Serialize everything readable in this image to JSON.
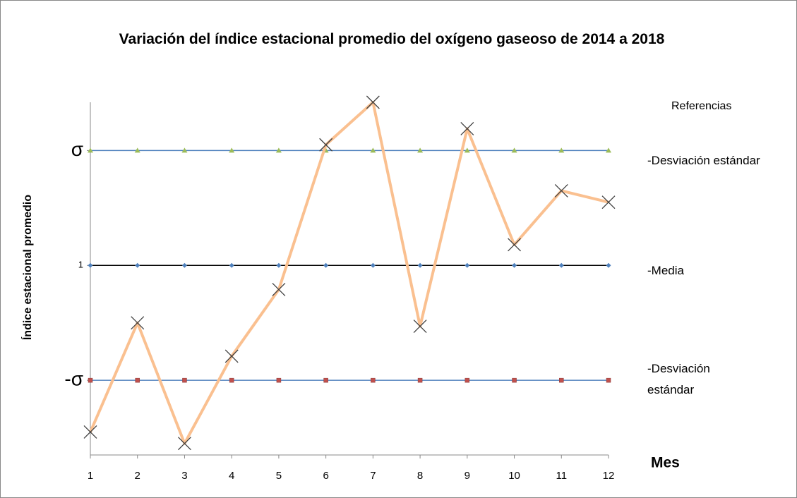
{
  "chart_data": {
    "type": "line",
    "title": "Variación del índice estacional promedio  del oxígeno gaseoso de 2014 a 2018",
    "x_label": "Mes",
    "y_label": "Índice estacional promedio",
    "legend_title": "Referencias",
    "x": [
      1,
      2,
      3,
      4,
      5,
      6,
      7,
      8,
      9,
      10,
      11,
      12
    ],
    "xlim": [
      1,
      12
    ],
    "xticks": [
      1,
      2,
      3,
      4,
      5,
      6,
      7,
      8,
      9,
      10,
      11,
      12
    ],
    "ylim": [
      0.835,
      1.142
    ],
    "yticks": [
      {
        "value": 0.9,
        "label": "-σ"
      },
      1,
      {
        "value": 1.1,
        "label": "σ"
      }
    ],
    "series": [
      {
        "name": "-Desviación estándar",
        "color": "#4f81bd",
        "marker": "triangle",
        "marker_color": "#9bbb59",
        "values": [
          1.1,
          1.1,
          1.1,
          1.1,
          1.1,
          1.1,
          1.1,
          1.1,
          1.1,
          1.1,
          1.1,
          1.1
        ]
      },
      {
        "name": "-Media",
        "color": "#000000",
        "marker": "diamond",
        "marker_color": "#4f81bd",
        "values": [
          1,
          1,
          1,
          1,
          1,
          1,
          1,
          1,
          1,
          1,
          1,
          1
        ]
      },
      {
        "name": "-Desviación estándar",
        "color": "#4f81bd",
        "marker": "square",
        "marker_color": "#c0504d",
        "values": [
          0.9,
          0.9,
          0.9,
          0.9,
          0.9,
          0.9,
          0.9,
          0.9,
          0.9,
          0.9,
          0.9,
          0.9
        ]
      },
      {
        "color": "#fac090",
        "marker": "x",
        "marker_color": "#404040",
        "values": [
          0.855,
          0.95,
          0.845,
          0.921,
          0.979,
          1.105,
          1.142,
          0.947,
          1.119,
          1.018,
          1.065,
          1.055
        ]
      }
    ]
  }
}
